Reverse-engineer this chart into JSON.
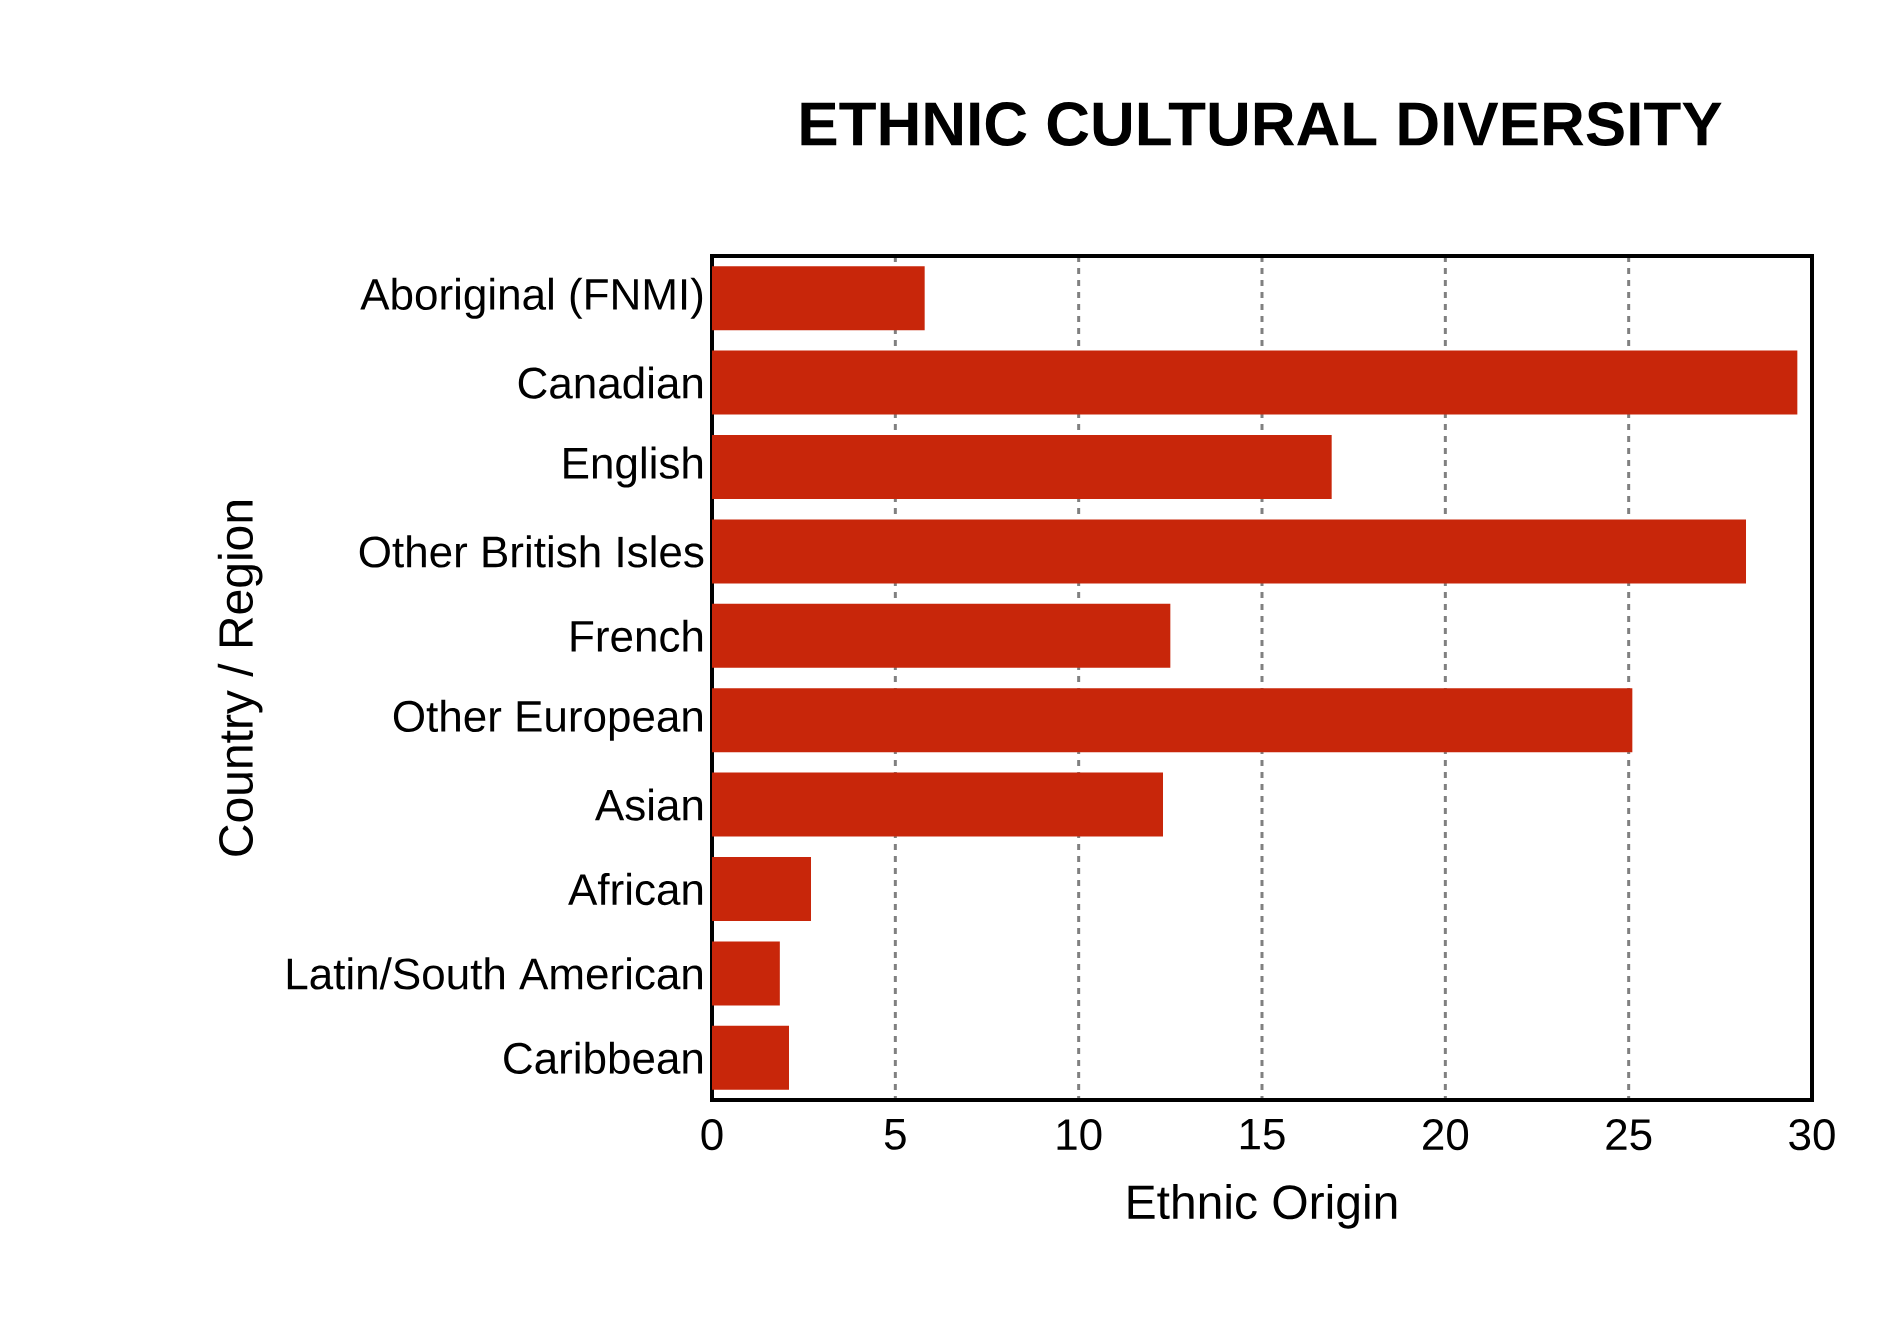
{
  "chart_data": {
    "type": "bar",
    "orientation": "horizontal",
    "title": "ETHNIC CULTURAL DIVERSITY",
    "xlabel": "Ethnic Origin",
    "ylabel": "Country / Region",
    "categories": [
      "Aboriginal (FNMI)",
      "Canadian",
      "English",
      "Other British Isles",
      "French",
      "Other European",
      "Asian",
      "African",
      "Latin/South American",
      "Caribbean"
    ],
    "values": [
      5.8,
      29.6,
      16.9,
      28.2,
      12.5,
      25.1,
      12.3,
      2.7,
      1.85,
      2.1
    ],
    "color": "#c8260a",
    "xlim": [
      0,
      30
    ],
    "xticks": [
      0,
      5,
      10,
      15,
      20,
      25,
      30
    ],
    "grid": "x"
  }
}
